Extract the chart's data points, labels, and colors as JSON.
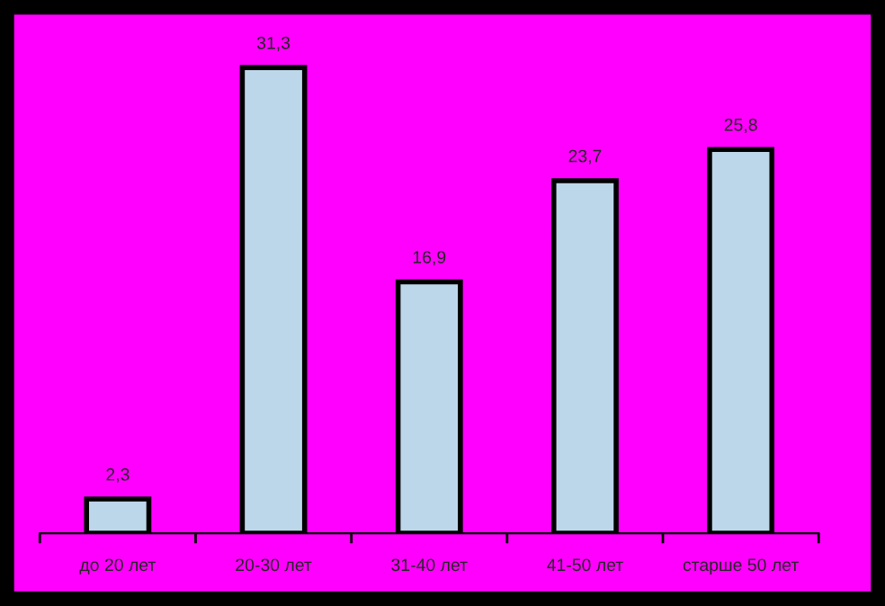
{
  "chart_data": {
    "type": "bar",
    "categories": [
      "до 20 лет",
      "20-30 лет",
      "31-40 лет",
      "41-50 лет",
      "старше 50 лет"
    ],
    "values": [
      2.3,
      31.3,
      16.9,
      23.7,
      25.8
    ],
    "value_labels": [
      "2,3",
      "31,3",
      "16,9",
      "23,7",
      "25,8"
    ],
    "color": "#bdd7ea",
    "grid": false,
    "legend": false
  }
}
